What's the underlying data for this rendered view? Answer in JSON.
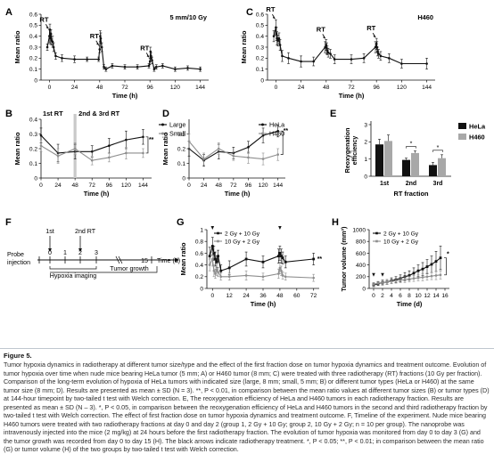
{
  "chart_data": [
    {
      "panel": "A",
      "type": "line",
      "annotation": "5 mm/10 Gy",
      "xlabel": "Time (h)",
      "ylabel": "Mean ratio",
      "xlim": [
        -8,
        152
      ],
      "ylim": [
        0,
        0.6
      ],
      "xticks": [
        0,
        24,
        48,
        72,
        96,
        120,
        144
      ],
      "yticks": [
        0,
        0.1,
        0.2,
        0.3,
        0.4,
        0.5,
        0.6
      ],
      "rt_labels": [
        "RT",
        "RT",
        "RT"
      ],
      "rt_times": [
        0,
        48,
        96
      ],
      "series": [
        {
          "x": [
            -2,
            0,
            0.5,
            1,
            1.5,
            2,
            3,
            4,
            6,
            12,
            24,
            36,
            47,
            48,
            48.5,
            49,
            50,
            52,
            54,
            60,
            72,
            84,
            95,
            96,
            96.5,
            97,
            98,
            100,
            102,
            108,
            120,
            132,
            144
          ],
          "y": [
            0.3,
            0.4,
            0.46,
            0.38,
            0.42,
            0.36,
            0.35,
            0.3,
            0.22,
            0.2,
            0.19,
            0.19,
            0.19,
            0.28,
            0.4,
            0.38,
            0.3,
            0.12,
            0.1,
            0.13,
            0.12,
            0.12,
            0.13,
            0.17,
            0.26,
            0.22,
            0.18,
            0.1,
            0.12,
            0.13,
            0.1,
            0.11,
            0.1
          ],
          "err": [
            0.03,
            0.06,
            0.05,
            0.05,
            0.04,
            0.04,
            0.05,
            0.04,
            0.03,
            0.03,
            0.03,
            0.02,
            0.02,
            0.03,
            0.05,
            0.05,
            0.04,
            0.02,
            0.02,
            0.02,
            0.02,
            0.02,
            0.02,
            0.03,
            0.04,
            0.03,
            0.03,
            0.02,
            0.02,
            0.02,
            0.02,
            0.02,
            0.02
          ]
        }
      ]
    },
    {
      "panel": "B",
      "type": "line",
      "xlabel": "Time (h)",
      "ylabel": "Mean ratio",
      "xlim": [
        0,
        156
      ],
      "ylim": [
        0,
        0.4
      ],
      "xticks": [
        0,
        24,
        48,
        72,
        96,
        120,
        144
      ],
      "yticks": [
        0,
        0.1,
        0.2,
        0.3,
        0.4
      ],
      "zone1_label": "1st RT",
      "zone2_label": "2nd & 3rd RT",
      "significance": "**",
      "series": [
        {
          "name": "Large",
          "x": [
            0,
            24,
            48,
            72,
            96,
            120,
            144
          ],
          "y": [
            0.29,
            0.17,
            0.18,
            0.18,
            0.22,
            0.26,
            0.28
          ],
          "err": [
            0.05,
            0.06,
            0.05,
            0.04,
            0.05,
            0.06,
            0.05
          ]
        },
        {
          "name": "Small",
          "x": [
            0,
            24,
            48,
            72,
            96,
            120,
            144
          ],
          "y": [
            0.22,
            0.15,
            0.2,
            0.12,
            0.14,
            0.17,
            0.17
          ],
          "err": [
            0.04,
            0.05,
            0.04,
            0.03,
            0.03,
            0.04,
            0.03
          ]
        }
      ]
    },
    {
      "panel": "C",
      "type": "line",
      "annotation": "H460",
      "xlabel": "Time (h)",
      "ylabel": "Mean ratio",
      "xlim": [
        -8,
        152
      ],
      "ylim": [
        0,
        0.6
      ],
      "xticks": [
        0,
        24,
        48,
        72,
        96,
        120,
        144
      ],
      "yticks": [
        0,
        0.1,
        0.2,
        0.3,
        0.4,
        0.5,
        0.6
      ],
      "rt_labels": [
        "RT",
        "RT",
        "RT"
      ],
      "rt_times": [
        0,
        48,
        96
      ],
      "series": [
        {
          "x": [
            -2,
            0,
            0.5,
            1,
            2,
            3,
            4,
            6,
            12,
            24,
            36,
            47,
            48,
            48.5,
            49,
            50,
            52,
            56,
            72,
            84,
            95,
            96,
            96.5,
            97,
            98,
            100,
            108,
            120,
            144
          ],
          "y": [
            0.4,
            0.48,
            0.42,
            0.38,
            0.36,
            0.38,
            0.32,
            0.22,
            0.2,
            0.17,
            0.17,
            0.3,
            0.32,
            0.29,
            0.27,
            0.25,
            0.24,
            0.19,
            0.19,
            0.2,
            0.3,
            0.33,
            0.3,
            0.26,
            0.24,
            0.22,
            0.2,
            0.15,
            0.15
          ],
          "err": [
            0.05,
            0.07,
            0.06,
            0.06,
            0.05,
            0.05,
            0.05,
            0.05,
            0.05,
            0.05,
            0.04,
            0.05,
            0.05,
            0.05,
            0.04,
            0.04,
            0.04,
            0.04,
            0.04,
            0.04,
            0.05,
            0.05,
            0.05,
            0.04,
            0.04,
            0.04,
            0.04,
            0.04,
            0.05
          ]
        }
      ]
    },
    {
      "panel": "D",
      "type": "line",
      "xlabel": "Time (h)",
      "ylabel": "Mean ratio",
      "xlim": [
        0,
        156
      ],
      "ylim": [
        0,
        0.4
      ],
      "xticks": [
        0,
        24,
        48,
        72,
        96,
        120,
        144
      ],
      "yticks": [
        0,
        0.1,
        0.2,
        0.3
      ],
      "significance": "**",
      "series": [
        {
          "name": "HeLa",
          "x": [
            0,
            24,
            48,
            72,
            96,
            120,
            144
          ],
          "y": [
            0.2,
            0.12,
            0.18,
            0.17,
            0.21,
            0.29,
            0.32
          ],
          "err": [
            0.05,
            0.04,
            0.05,
            0.04,
            0.04,
            0.05,
            0.04
          ]
        },
        {
          "name": "H460",
          "x": [
            0,
            24,
            48,
            72,
            96,
            120,
            144
          ],
          "y": [
            0.25,
            0.13,
            0.2,
            0.15,
            0.14,
            0.13,
            0.16
          ],
          "err": [
            0.05,
            0.04,
            0.04,
            0.03,
            0.04,
            0.04,
            0.04
          ]
        }
      ]
    },
    {
      "panel": "E",
      "type": "bar",
      "xlabel": "RT fraction",
      "ylabel": "Reoxygenation efficiency",
      "categories": [
        "1st",
        "2nd",
        "3rd"
      ],
      "ylim": [
        0,
        3
      ],
      "yticks": [
        0,
        1,
        2,
        3
      ],
      "significance": [
        "*",
        "*"
      ],
      "series": [
        {
          "name": "HeLa",
          "values": [
            1.85,
            0.95,
            0.65
          ],
          "err": [
            0.3,
            0.1,
            0.15
          ],
          "color": "#111111"
        },
        {
          "name": "H460",
          "values": [
            2.05,
            1.35,
            1.05
          ],
          "err": [
            0.35,
            0.12,
            0.2
          ],
          "color": "#a8a8a8"
        }
      ]
    },
    {
      "panel": "F",
      "type": "timeline",
      "axis_label": "Time (d)",
      "left_label": "Probe injection",
      "ticks": [
        "0",
        "1",
        "2",
        "3",
        "15"
      ],
      "rt_markers": [
        "1st",
        "2nd RT"
      ],
      "bracket1": "Hypoxia imaging",
      "bracket2": "Tumor growth"
    },
    {
      "panel": "G",
      "type": "line",
      "xlabel": "Time (h)",
      "ylabel": "Mean ratio",
      "xlim": [
        -4,
        76
      ],
      "ylim": [
        0,
        1.0
      ],
      "xticks": [
        0,
        12,
        24,
        36,
        48,
        60,
        72
      ],
      "yticks": [
        0,
        0.2,
        0.4,
        0.6,
        0.8,
        1.0
      ],
      "significance": "**",
      "series": [
        {
          "name": "2 Gy + 10 Gy",
          "x": [
            -2,
            0,
            1,
            2,
            3,
            4,
            6,
            12,
            24,
            36,
            47,
            48,
            49,
            50,
            52,
            72
          ],
          "y": [
            0.55,
            0.72,
            0.6,
            0.5,
            0.45,
            0.55,
            0.3,
            0.35,
            0.5,
            0.45,
            0.55,
            0.6,
            0.55,
            0.52,
            0.45,
            0.5
          ],
          "err": [
            0.15,
            0.15,
            0.12,
            0.12,
            0.1,
            0.1,
            0.1,
            0.12,
            0.12,
            0.1,
            0.12,
            0.12,
            0.12,
            0.1,
            0.1,
            0.1
          ]
        },
        {
          "name": "10 Gy + 2 Gy",
          "x": [
            -2,
            0,
            1,
            2,
            3,
            4,
            6,
            12,
            24,
            36,
            47,
            48,
            49,
            50,
            52,
            72
          ],
          "y": [
            0.4,
            0.5,
            0.3,
            0.25,
            0.32,
            0.28,
            0.2,
            0.2,
            0.22,
            0.2,
            0.25,
            0.35,
            0.3,
            0.22,
            0.2,
            0.18
          ],
          "err": [
            0.1,
            0.12,
            0.1,
            0.08,
            0.1,
            0.08,
            0.06,
            0.06,
            0.08,
            0.06,
            0.08,
            0.1,
            0.08,
            0.06,
            0.06,
            0.06
          ]
        }
      ]
    },
    {
      "panel": "H",
      "type": "line",
      "xlabel": "Time (d)",
      "ylabel": "Tumor volume (mm³)",
      "xlim": [
        -1,
        17
      ],
      "ylim": [
        0,
        1000
      ],
      "xticks": [
        0,
        2,
        4,
        6,
        8,
        10,
        12,
        14,
        16
      ],
      "yticks": [
        0,
        200,
        400,
        600,
        800,
        1000
      ],
      "significance": "*",
      "series": [
        {
          "name": "2 Gy + 10 Gy",
          "x": [
            0,
            1,
            2,
            3,
            4,
            5,
            6,
            7,
            8,
            9,
            10,
            11,
            12,
            13,
            14,
            15
          ],
          "y": [
            60,
            80,
            100,
            110,
            130,
            150,
            170,
            200,
            220,
            260,
            300,
            330,
            370,
            410,
            460,
            520
          ],
          "err": [
            30,
            30,
            40,
            40,
            50,
            50,
            60,
            70,
            80,
            90,
            100,
            110,
            120,
            140,
            170,
            200
          ]
        },
        {
          "name": "10 Gy + 2 Gy",
          "x": [
            0,
            1,
            2,
            3,
            4,
            5,
            6,
            7,
            8,
            9,
            10,
            11,
            12,
            13,
            14,
            15
          ],
          "y": [
            70,
            90,
            100,
            110,
            120,
            130,
            140,
            150,
            160,
            170,
            180,
            190,
            200,
            210,
            220,
            230
          ],
          "err": [
            30,
            30,
            30,
            40,
            40,
            40,
            40,
            50,
            50,
            50,
            50,
            60,
            60,
            60,
            70,
            70
          ]
        }
      ]
    }
  ],
  "caption": {
    "title": "Figure 5.",
    "body": "Tumor hypoxia dynamics in radiotherapy at different tumor size/type and the effect of the first fraction dose on tumor hypoxia dynamics and treatment outcome. Evolution of tumor hypoxia over time when nude mice bearing HeLa tumor (5 mm; A) or H460 tumor (8 mm; C) were treated with three radiotherapy (RT) fractions (10 Gy per fraction). Comparison of the long-term evolution of hypoxia of HeLa tumors with indicated size (large, 8 mm; small, 5 mm; B) or different tumor types (HeLa or H460) at the same tumor size (8 mm; D). Results are presented as mean ± SD (N = 3). **, P < 0.01, in comparison between the mean ratio values at different tumor sizes (B) or tumor types (D) at 144-hour timepoint by two-tailed t test with Welch correction. E, The reoxygenation efficiency of HeLa and H460 tumors in each radiotherapy fraction. Results are presented as mean ± SD (N – 3). *, P < 0.05, in comparison between the reoxygenation efficiency of HeLa and H460 tumors in the second and third radiotherapy fraction by two-tailed t test with Welch correction. The effect of first fraction dose on tumor hypoxia dynamics and treatment outcome. F, Timeline of the experiment. Nude mice bearing H460 tumors were treated with two radiotherapy fractions at day 0 and day 2 (group 1, 2 Gy + 10 Gy; group 2, 10 Gy + 2 Gy; n = 10 per group). The nanoprobe was intravenously injected into the mice (2 mg/kg) at 24 hours before the first radiotherapy fraction. The evolution of tumor hypoxia was monitored from day 0 to day 3 (G) and the tumor growth was recorded from day 0 to day 15 (H). The black arrows indicate radiotherapy treatment. *, P < 0.05; **, P < 0.01; in comparison between the mean ratio (G) or tumor volume (H) of the two groups by two-tailed t test with Welch correction."
  }
}
